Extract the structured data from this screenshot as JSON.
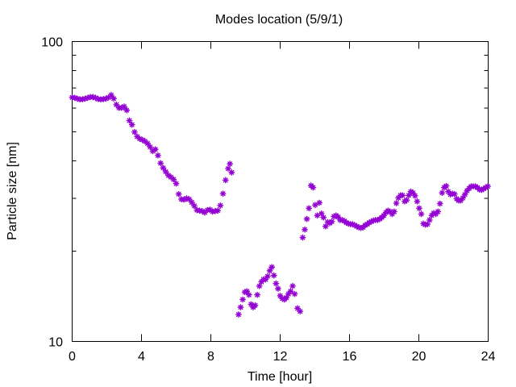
{
  "chart_data": {
    "type": "scatter",
    "title": "Modes location (5/9/1)",
    "xlabel": "Time [hour]",
    "ylabel": "Particle size [nm]",
    "xlim": [
      0,
      24
    ],
    "ylim": [
      10,
      100
    ],
    "yscale": "log",
    "x_ticks": [
      0,
      4,
      8,
      12,
      16,
      20,
      24
    ],
    "x_tick_labels": [
      "0",
      "4",
      "8",
      "12",
      "16",
      "20",
      "24"
    ],
    "y_ticks": [
      10,
      100
    ],
    "y_tick_labels": [
      "10",
      "100"
    ],
    "grid": false,
    "legend": "none",
    "marker": "asterisk",
    "color": "#9400d3",
    "series": [
      {
        "points": [
          [
            0.0,
            65.1
          ],
          [
            0.15,
            64.9
          ],
          [
            0.3,
            64.5
          ],
          [
            0.45,
            64.1
          ],
          [
            0.6,
            64.2
          ],
          [
            0.75,
            64.5
          ],
          [
            0.9,
            64.9
          ],
          [
            1.05,
            65.3
          ],
          [
            1.2,
            65.3
          ],
          [
            1.35,
            64.9
          ],
          [
            1.5,
            64.3
          ],
          [
            1.65,
            64.1
          ],
          [
            1.8,
            64.3
          ],
          [
            1.95,
            64.5
          ],
          [
            2.1,
            65.1
          ],
          [
            2.25,
            66.3
          ],
          [
            2.4,
            64.5
          ],
          [
            2.55,
            61.6
          ],
          [
            2.7,
            60.1
          ],
          [
            2.85,
            60.1
          ],
          [
            3.0,
            60.7
          ],
          [
            3.15,
            59.0
          ],
          [
            3.3,
            54.5
          ],
          [
            3.45,
            52.8
          ],
          [
            3.6,
            49.9
          ],
          [
            3.75,
            48.2
          ],
          [
            3.9,
            47.4
          ],
          [
            4.05,
            47.0
          ],
          [
            4.2,
            46.5
          ],
          [
            4.35,
            45.7
          ],
          [
            4.5,
            44.5
          ],
          [
            4.65,
            43.1
          ],
          [
            4.8,
            43.7
          ],
          [
            4.95,
            41.7
          ],
          [
            5.1,
            39.3
          ],
          [
            5.25,
            37.9
          ],
          [
            5.4,
            36.8
          ],
          [
            5.55,
            35.8
          ],
          [
            5.7,
            35.3
          ],
          [
            5.85,
            34.7
          ],
          [
            6.0,
            33.6
          ],
          [
            6.15,
            31.0
          ],
          [
            6.3,
            29.8
          ],
          [
            6.45,
            29.7
          ],
          [
            6.6,
            30.0
          ],
          [
            6.75,
            29.8
          ],
          [
            6.9,
            29.1
          ],
          [
            7.05,
            28.3
          ],
          [
            7.2,
            27.4
          ],
          [
            7.35,
            27.3
          ],
          [
            7.5,
            27.2
          ],
          [
            7.65,
            26.9
          ],
          [
            7.8,
            27.4
          ],
          [
            7.95,
            27.5
          ],
          [
            8.1,
            27.1
          ],
          [
            8.25,
            27.2
          ],
          [
            8.4,
            27.3
          ],
          [
            8.55,
            28.4
          ],
          [
            8.7,
            31.1
          ],
          [
            8.85,
            34.5
          ],
          [
            9.0,
            37.7
          ],
          [
            9.1,
            39.1
          ],
          [
            9.2,
            36.6
          ]
        ]
      },
      {
        "points": [
          [
            9.6,
            12.3
          ],
          [
            9.72,
            13.0
          ],
          [
            9.84,
            13.8
          ],
          [
            9.96,
            14.6
          ],
          [
            10.08,
            14.7
          ],
          [
            10.2,
            14.3
          ],
          [
            10.32,
            13.3
          ],
          [
            10.44,
            13.0
          ],
          [
            10.56,
            13.2
          ],
          [
            10.68,
            14.3
          ],
          [
            10.8,
            15.3
          ],
          [
            10.92,
            15.8
          ],
          [
            11.04,
            16.1
          ],
          [
            11.16,
            16.1
          ],
          [
            11.28,
            16.5
          ],
          [
            11.4,
            17.2
          ],
          [
            11.52,
            17.7
          ],
          [
            11.64,
            16.6
          ],
          [
            11.76,
            15.6
          ],
          [
            11.88,
            15.0
          ],
          [
            12.0,
            14.2
          ],
          [
            12.12,
            13.9
          ],
          [
            12.24,
            13.8
          ],
          [
            12.36,
            14.0
          ],
          [
            12.48,
            14.4
          ],
          [
            12.6,
            14.7
          ],
          [
            12.72,
            15.3
          ],
          [
            12.84,
            14.4
          ],
          [
            13.0,
            12.9
          ],
          [
            13.15,
            12.6
          ]
        ]
      },
      {
        "points": [
          [
            13.3,
            22.2
          ],
          [
            13.42,
            23.6
          ],
          [
            13.54,
            25.6
          ],
          [
            13.66,
            27.8
          ],
          [
            13.78,
            33.1
          ],
          [
            13.9,
            32.6
          ],
          [
            14.02,
            28.5
          ],
          [
            14.14,
            26.3
          ],
          [
            14.26,
            29.0
          ],
          [
            14.38,
            26.7
          ],
          [
            14.5,
            25.9
          ],
          [
            14.62,
            24.2
          ],
          [
            14.74,
            25.0
          ],
          [
            14.86,
            24.8
          ],
          [
            14.98,
            25.1
          ],
          [
            15.1,
            26.1
          ],
          [
            15.22,
            26.3
          ],
          [
            15.34,
            26.0
          ],
          [
            15.46,
            25.4
          ],
          [
            15.58,
            25.4
          ],
          [
            15.7,
            25.2
          ],
          [
            15.82,
            24.9
          ],
          [
            15.94,
            24.7
          ],
          [
            16.06,
            24.6
          ],
          [
            16.18,
            24.6
          ],
          [
            16.3,
            24.4
          ],
          [
            16.42,
            24.2
          ],
          [
            16.54,
            24.0
          ],
          [
            16.66,
            23.9
          ],
          [
            16.78,
            24.0
          ],
          [
            16.9,
            24.4
          ],
          [
            17.02,
            24.6
          ],
          [
            17.14,
            24.9
          ],
          [
            17.26,
            25.1
          ],
          [
            17.38,
            25.3
          ],
          [
            17.5,
            25.4
          ],
          [
            17.62,
            25.4
          ],
          [
            17.74,
            25.6
          ],
          [
            17.86,
            25.9
          ],
          [
            17.98,
            26.3
          ],
          [
            18.1,
            26.9
          ],
          [
            18.22,
            27.3
          ],
          [
            18.34,
            27.1
          ],
          [
            18.46,
            26.6
          ],
          [
            18.58,
            27.1
          ],
          [
            18.7,
            28.9
          ],
          [
            18.82,
            30.1
          ],
          [
            18.94,
            30.7
          ],
          [
            19.06,
            30.7
          ],
          [
            19.18,
            29.3
          ],
          [
            19.3,
            29.6
          ],
          [
            19.42,
            30.7
          ],
          [
            19.54,
            31.6
          ],
          [
            19.66,
            31.3
          ],
          [
            19.78,
            30.6
          ],
          [
            19.9,
            29.3
          ],
          [
            20.02,
            27.8
          ],
          [
            20.14,
            26.6
          ],
          [
            20.26,
            24.7
          ],
          [
            20.38,
            24.5
          ],
          [
            20.5,
            24.6
          ],
          [
            20.62,
            25.4
          ],
          [
            20.74,
            26.3
          ],
          [
            20.86,
            26.8
          ],
          [
            20.98,
            26.6
          ],
          [
            21.1,
            27.1
          ],
          [
            21.22,
            28.8
          ],
          [
            21.34,
            31.3
          ],
          [
            21.46,
            32.6
          ],
          [
            21.58,
            33.0
          ],
          [
            21.7,
            31.6
          ],
          [
            21.82,
            30.9
          ],
          [
            21.94,
            31.1
          ],
          [
            22.06,
            31.0
          ],
          [
            22.18,
            29.9
          ],
          [
            22.3,
            29.5
          ],
          [
            22.42,
            29.5
          ],
          [
            22.54,
            30.1
          ],
          [
            22.66,
            30.9
          ],
          [
            22.78,
            31.8
          ],
          [
            22.9,
            32.4
          ],
          [
            23.02,
            32.9
          ],
          [
            23.14,
            32.9
          ],
          [
            23.26,
            32.9
          ],
          [
            23.38,
            32.6
          ],
          [
            23.5,
            32.1
          ],
          [
            23.62,
            32.0
          ],
          [
            23.74,
            32.3
          ],
          [
            23.86,
            32.6
          ],
          [
            23.98,
            32.9
          ]
        ]
      }
    ]
  }
}
